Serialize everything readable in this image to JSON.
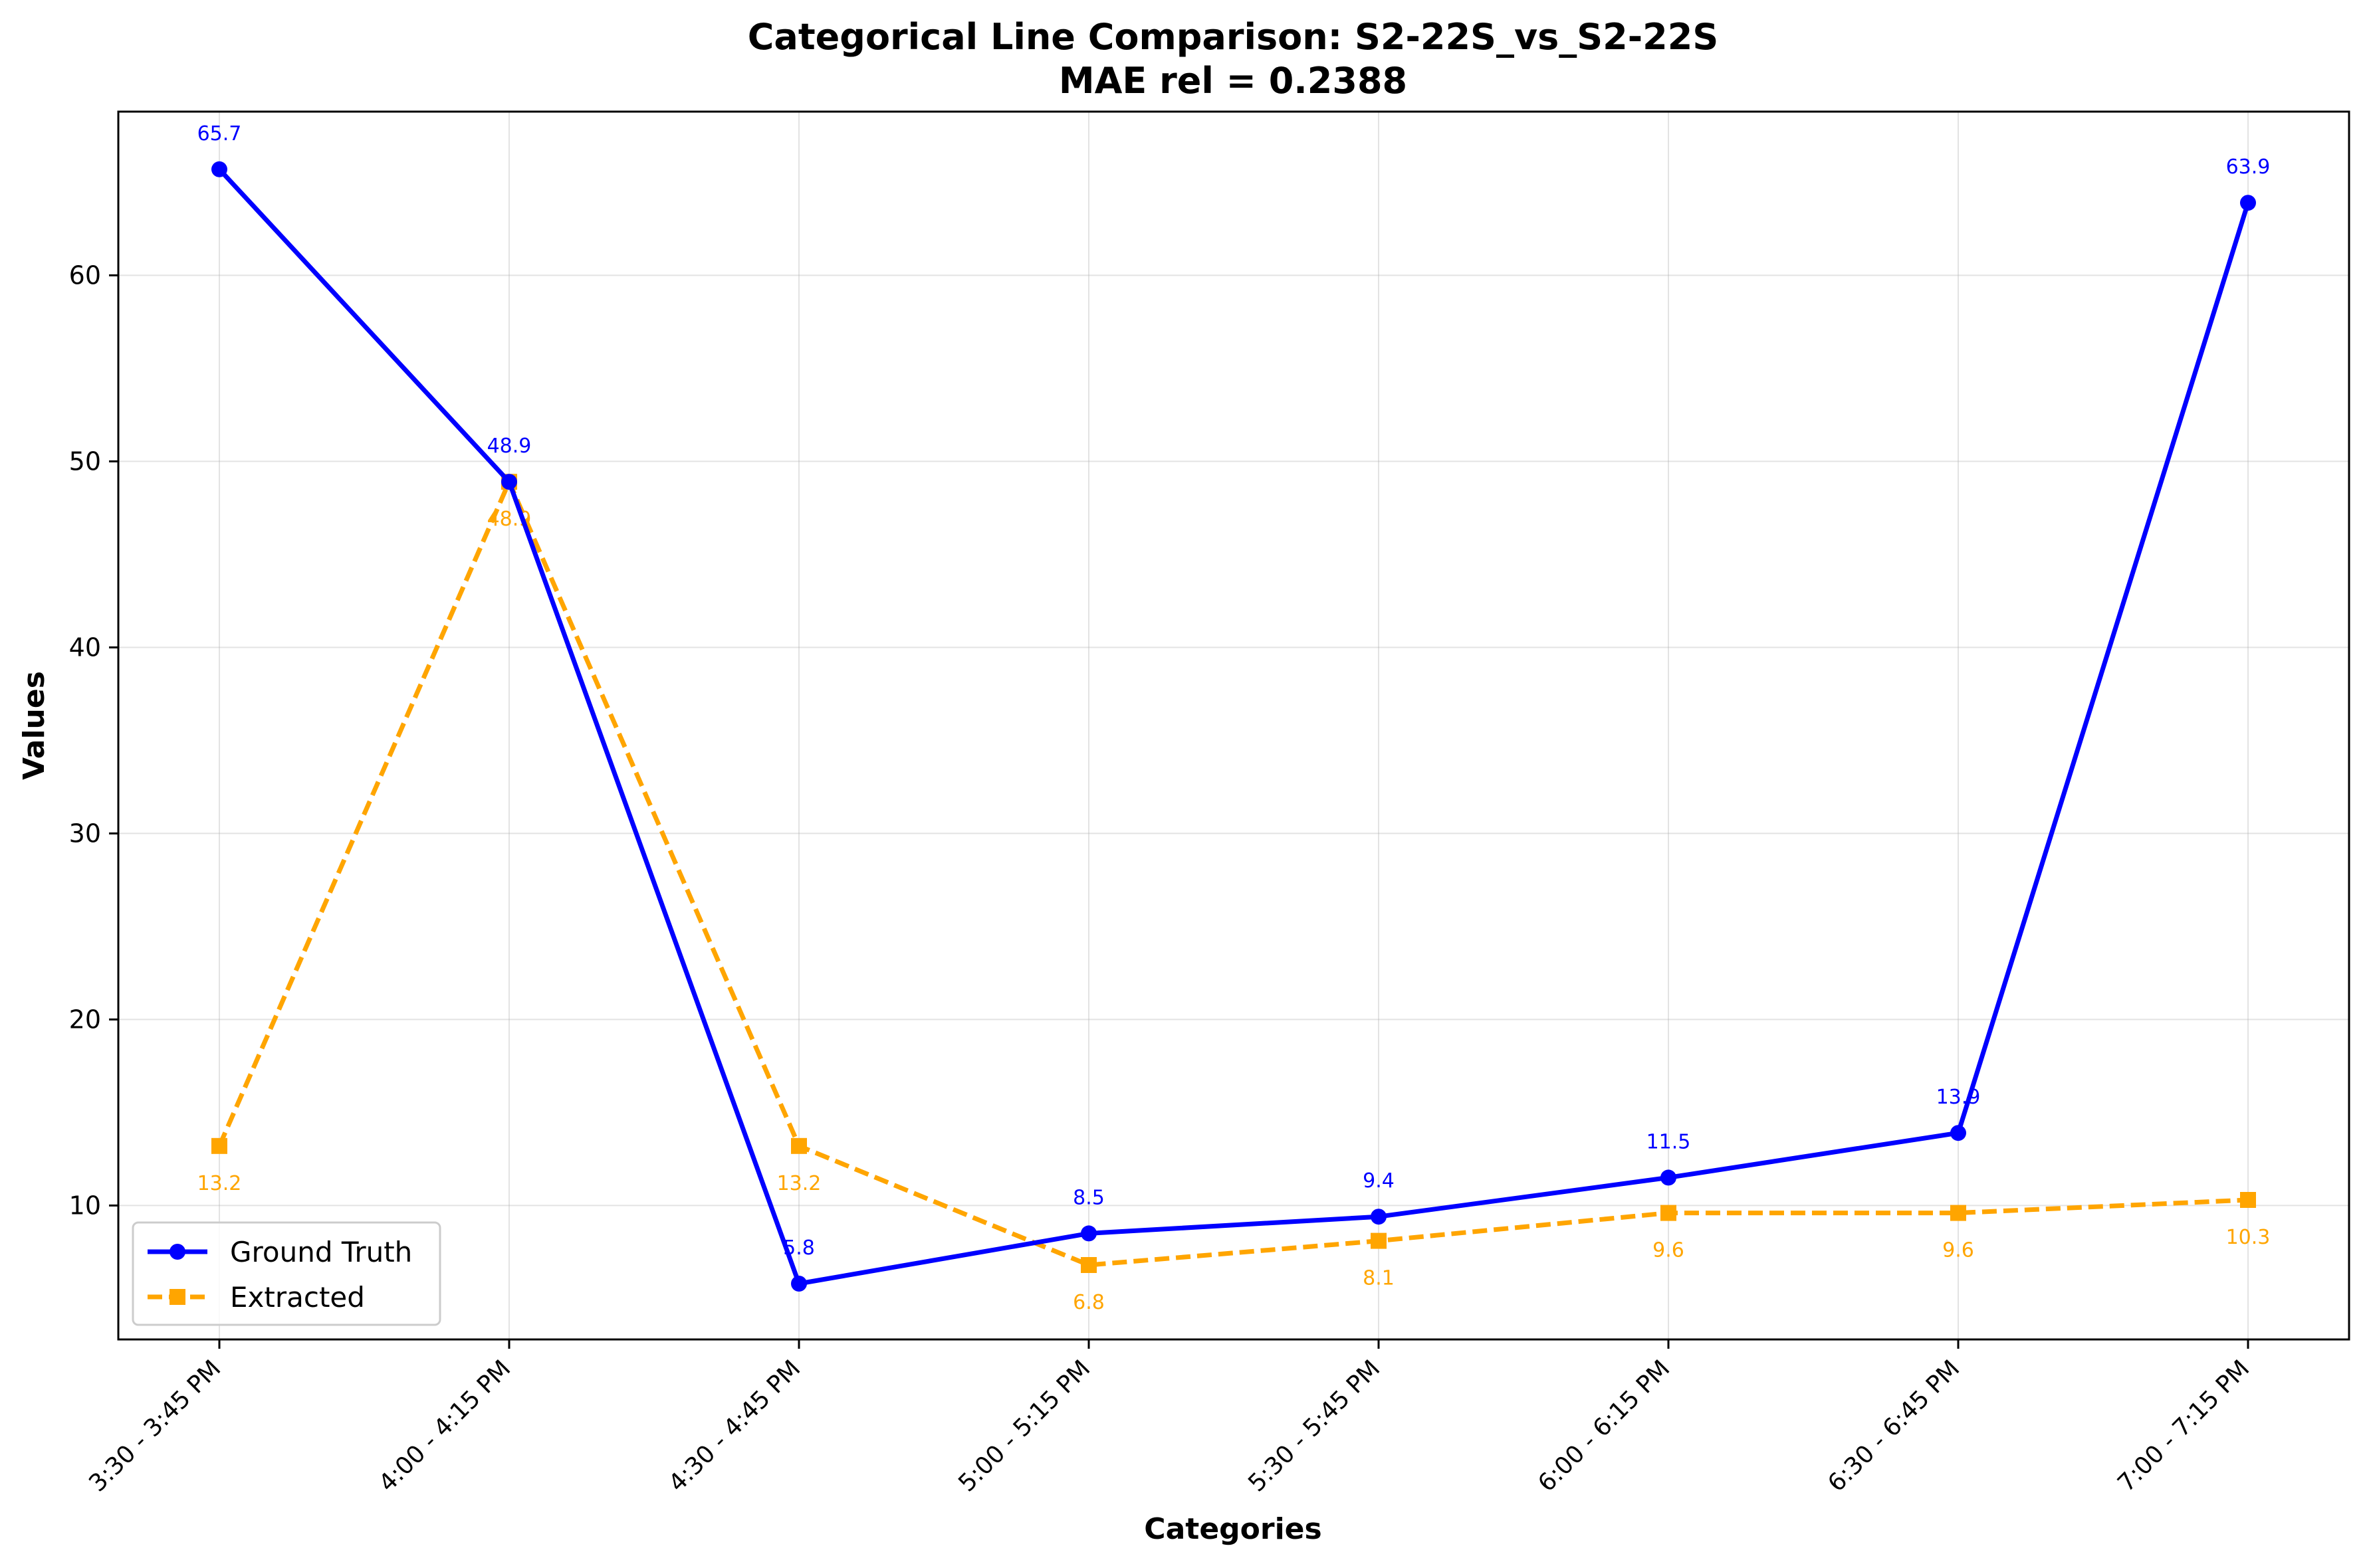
{
  "chart_data": {
    "type": "line",
    "title": "Categorical Line Comparison: S2-22S_vs_S2-22S",
    "subtitle": "MAE rel = 0.2388",
    "xlabel": "Categories",
    "ylabel": "Values",
    "categories": [
      "3:30 - 3:45 PM",
      "4:00 - 4:15 PM",
      "4:30 - 4:45 PM",
      "5:00 - 5:15 PM",
      "5:30 - 5:45 PM",
      "6:00 - 6:15 PM",
      "6:30 - 6:45 PM",
      "7:00 - 7:15 PM"
    ],
    "yticks": [
      10,
      20,
      30,
      40,
      50,
      60
    ],
    "ylim": [
      2.8,
      68.8
    ],
    "grid": true,
    "legend_position": "lower-left",
    "series": [
      {
        "name": "Ground Truth",
        "values": [
          65.7,
          48.9,
          5.8,
          8.5,
          9.4,
          11.5,
          13.9,
          63.9
        ],
        "labels": [
          "65.7",
          "48.9",
          "5.8",
          "8.5",
          "9.4",
          "11.5",
          "13.9",
          "63.9"
        ],
        "color": "#0000ff",
        "marker": "circle",
        "line_style": "solid",
        "label_placement": "above"
      },
      {
        "name": "Extracted",
        "values": [
          13.2,
          48.9,
          13.2,
          6.8,
          8.1,
          9.6,
          9.6,
          10.3
        ],
        "labels": [
          "13.2",
          "48.9",
          "13.2",
          "6.8",
          "8.1",
          "9.6",
          "9.6",
          "10.3"
        ],
        "color": "#ffa500",
        "marker": "square",
        "line_style": "dashed",
        "label_placement": "below"
      }
    ]
  }
}
